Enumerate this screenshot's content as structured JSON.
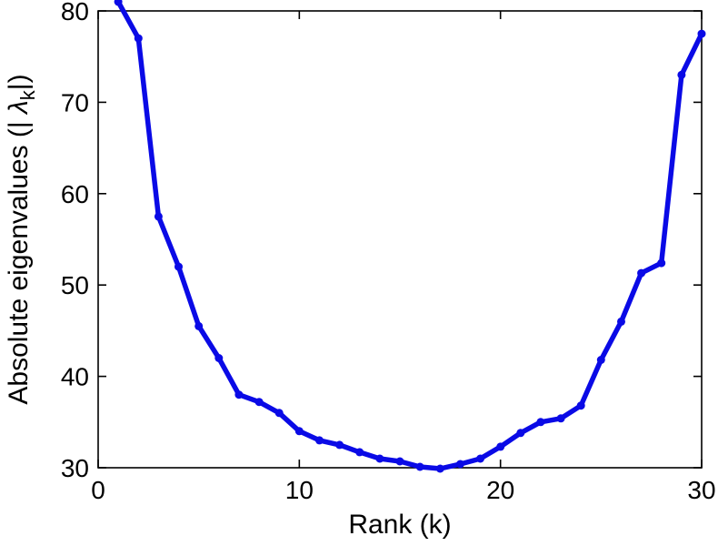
{
  "chart_data": {
    "type": "line",
    "title": "",
    "xlabel": "Rank (k)",
    "ylabel_parts": {
      "prefix": "Absolute eigenvalues (|",
      "spacer": "  ",
      "symbol": "λ",
      "subscript": "k",
      "suffix": "|)"
    },
    "xlim": [
      0,
      30
    ],
    "ylim": [
      30,
      80
    ],
    "xticks": [
      0,
      10,
      20,
      30
    ],
    "yticks": [
      30,
      40,
      50,
      60,
      70,
      80
    ],
    "grid": false,
    "legend": null,
    "line_color": "#0a0ae6",
    "marker": "circle",
    "x": [
      1,
      2,
      3,
      4,
      5,
      6,
      7,
      8,
      9,
      10,
      11,
      12,
      13,
      14,
      15,
      16,
      17,
      18,
      19,
      20,
      21,
      22,
      23,
      24,
      25,
      26,
      27,
      28,
      29,
      30
    ],
    "y": [
      81,
      77,
      57.5,
      52,
      45.5,
      42,
      38,
      37.2,
      36,
      34,
      33,
      32.5,
      31.7,
      31,
      30.7,
      30.1,
      29.9,
      30.4,
      31,
      32.3,
      33.8,
      35,
      35.4,
      36.8,
      41.8,
      46,
      51.3,
      52.4,
      73,
      77.5
    ]
  }
}
